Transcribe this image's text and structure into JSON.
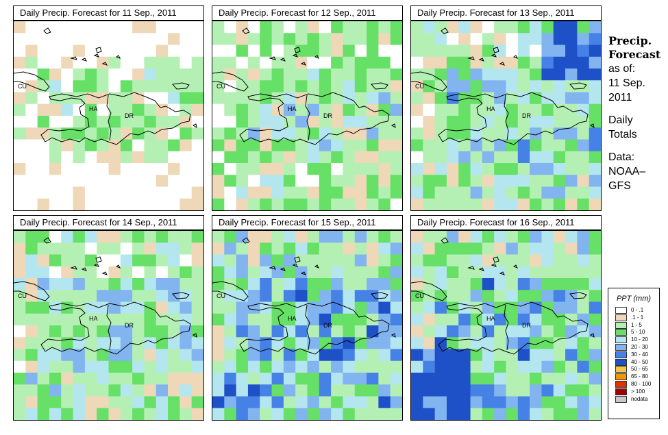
{
  "panels": [
    {
      "title": "Daily Precip. Forecast for  11 Sep., 2011",
      "seed": 11,
      "bias": 0.9
    },
    {
      "title": "Daily Precip. Forecast for  12 Sep., 2011",
      "seed": 12,
      "bias": 1.4
    },
    {
      "title": "Daily Precip. Forecast for  13 Sep., 2011",
      "seed": 13,
      "bias": 1.7
    },
    {
      "title": "Daily Precip. Forecast for  14 Sep., 2011",
      "seed": 14,
      "bias": 1.6
    },
    {
      "title": "Daily Precip. Forecast for  15 Sep., 2011",
      "seed": 15,
      "bias": 2.1
    },
    {
      "title": "Daily Precip. Forecast for  16 Sep., 2011",
      "seed": 16,
      "bias": 2.0
    }
  ],
  "map_labels": {
    "cuba": "CU",
    "haiti": "HA",
    "dominican_republic": "DR"
  },
  "side": {
    "title_line1": "Precip.",
    "title_line2": "Forecast",
    "asof_label": "as of:",
    "date_line1": "11 Sep.",
    "date_line2": "2011",
    "totals_line1": "Daily",
    "totals_line2": "Totals",
    "data_line1": "Data:",
    "data_line2": "NOAA–",
    "data_line3": "GFS"
  },
  "legend": {
    "title": "PPT (mm)",
    "items": [
      {
        "label": "0 - .1",
        "color": "#ffffff"
      },
      {
        "label": ".1 - 1",
        "color": "#eed8b8"
      },
      {
        "label": "1 - 5",
        "color": "#b4f0b4"
      },
      {
        "label": "5 - 10",
        "color": "#66e066"
      },
      {
        "label": "10 - 20",
        "color": "#b4e6f0"
      },
      {
        "label": "20 - 30",
        "color": "#82b4f0"
      },
      {
        "label": "30 - 40",
        "color": "#4682e6"
      },
      {
        "label": "40 - 50",
        "color": "#1e50c8"
      },
      {
        "label": "50 - 65",
        "color": "#f0c850"
      },
      {
        "label": "65 - 80",
        "color": "#f09600"
      },
      {
        "label": "80 - 100",
        "color": "#e03200"
      },
      {
        "label": "> 100",
        "color": "#a00000"
      },
      {
        "label": "nodata",
        "color": "#c8c8c8"
      }
    ]
  }
}
